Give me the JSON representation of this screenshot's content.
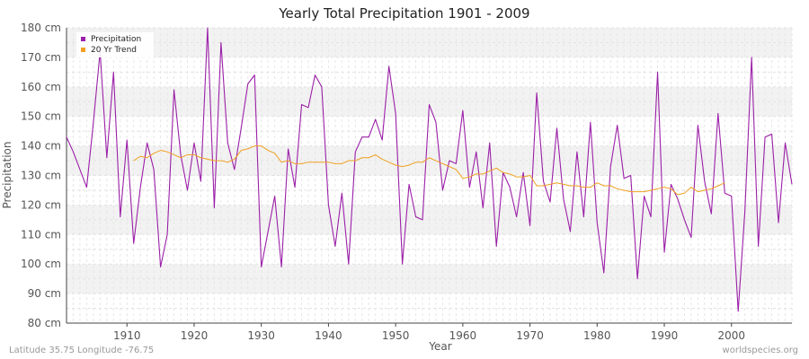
{
  "chart_data": {
    "type": "line",
    "title": "Yearly Total Precipitation 1901 - 2009",
    "xlabel": "Year",
    "ylabel": "Precipitation",
    "xlim": [
      1901,
      2009
    ],
    "ylim": [
      80,
      180
    ],
    "x_ticks": [
      1910,
      1920,
      1930,
      1940,
      1950,
      1960,
      1970,
      1980,
      1990,
      2000
    ],
    "y_ticks": [
      80,
      90,
      100,
      110,
      120,
      130,
      140,
      150,
      160,
      170,
      180
    ],
    "y_unit": "cm",
    "grid": true,
    "legend_position": "top-left",
    "series": [
      {
        "name": "Precipitation",
        "color": "#9b1fa8",
        "x": [
          1901,
          1902,
          1903,
          1904,
          1905,
          1906,
          1907,
          1908,
          1909,
          1910,
          1911,
          1912,
          1913,
          1914,
          1915,
          1916,
          1917,
          1918,
          1919,
          1920,
          1921,
          1922,
          1923,
          1924,
          1925,
          1926,
          1927,
          1928,
          1929,
          1930,
          1931,
          1932,
          1933,
          1934,
          1935,
          1936,
          1937,
          1938,
          1939,
          1940,
          1941,
          1942,
          1943,
          1944,
          1945,
          1946,
          1947,
          1948,
          1949,
          1950,
          1951,
          1952,
          1953,
          1954,
          1955,
          1956,
          1957,
          1958,
          1959,
          1960,
          1961,
          1962,
          1963,
          1964,
          1965,
          1966,
          1967,
          1968,
          1969,
          1970,
          1971,
          1972,
          1973,
          1974,
          1975,
          1976,
          1977,
          1978,
          1979,
          1980,
          1981,
          1982,
          1983,
          1984,
          1985,
          1986,
          1987,
          1988,
          1989,
          1990,
          1991,
          1992,
          1993,
          1994,
          1995,
          1996,
          1997,
          1998,
          1999,
          2000,
          2001,
          2002,
          2003,
          2004,
          2005,
          2006,
          2007,
          2008,
          2009
        ],
        "values": [
          143,
          138,
          132,
          126,
          148,
          172,
          136,
          165,
          116,
          142,
          107,
          126,
          141,
          132,
          99,
          110,
          159,
          137,
          125,
          141,
          128,
          180,
          119,
          175,
          141,
          132,
          146,
          161,
          164,
          99,
          111,
          123,
          99,
          139,
          126,
          154,
          153,
          164,
          160,
          120,
          106,
          124,
          100,
          138,
          143,
          143,
          149,
          142,
          167,
          151,
          100,
          127,
          116,
          115,
          154,
          148,
          125,
          135,
          134,
          152,
          126,
          138,
          119,
          141,
          106,
          131,
          126,
          116,
          131,
          113,
          158,
          128,
          121,
          146,
          122,
          111,
          138,
          116,
          148,
          114,
          97,
          133,
          147,
          129,
          130,
          95,
          123,
          116,
          165,
          104,
          127,
          122,
          115,
          109,
          147,
          128,
          117,
          151,
          124,
          123,
          84,
          118,
          170,
          106,
          143,
          144,
          114,
          141,
          127
        ]
      },
      {
        "name": "20 Yr Trend",
        "color": "#f0a020",
        "x": [
          1911,
          1912,
          1913,
          1914,
          1915,
          1916,
          1917,
          1918,
          1919,
          1920,
          1921,
          1922,
          1923,
          1924,
          1925,
          1926,
          1927,
          1928,
          1929,
          1930,
          1931,
          1932,
          1933,
          1934,
          1935,
          1936,
          1937,
          1938,
          1939,
          1940,
          1941,
          1942,
          1943,
          1944,
          1945,
          1946,
          1947,
          1948,
          1949,
          1950,
          1951,
          1952,
          1953,
          1954,
          1955,
          1956,
          1957,
          1958,
          1959,
          1960,
          1961,
          1962,
          1963,
          1964,
          1965,
          1966,
          1967,
          1968,
          1969,
          1970,
          1971,
          1972,
          1973,
          1974,
          1975,
          1976,
          1977,
          1978,
          1979,
          1980,
          1981,
          1982,
          1983,
          1984,
          1985,
          1986,
          1987,
          1988,
          1989,
          1990,
          1991,
          1992,
          1993,
          1994,
          1995,
          1996,
          1997,
          1998,
          1999
        ],
        "values": [
          135,
          136.5,
          136,
          137.5,
          138.5,
          138,
          137,
          136,
          137,
          137,
          136,
          135.5,
          135,
          135,
          134.5,
          135.5,
          138.5,
          139,
          140,
          140,
          138.5,
          137.5,
          134.5,
          135,
          134,
          134,
          134.5,
          134.5,
          134.5,
          134.5,
          134,
          134,
          135,
          135,
          136,
          136,
          137,
          135.5,
          134.5,
          133.5,
          133,
          133.5,
          134.5,
          134.5,
          136,
          135,
          134,
          133,
          132,
          129,
          129.5,
          130.5,
          130.5,
          131.5,
          132.5,
          131,
          130.5,
          129.5,
          129.5,
          130,
          126.5,
          126.5,
          127,
          127.5,
          127,
          126.5,
          126.5,
          126,
          126,
          127.5,
          126.5,
          126.5,
          125.5,
          125,
          124.5,
          124.5,
          124.5,
          125,
          125.5,
          126,
          125.5,
          123.5,
          124,
          126,
          124.5,
          125,
          125.5,
          126.5,
          127.5
        ]
      }
    ]
  },
  "footer": {
    "left": "Latitude 35.75 Longitude -76.75",
    "right": "worldspecies.org"
  }
}
